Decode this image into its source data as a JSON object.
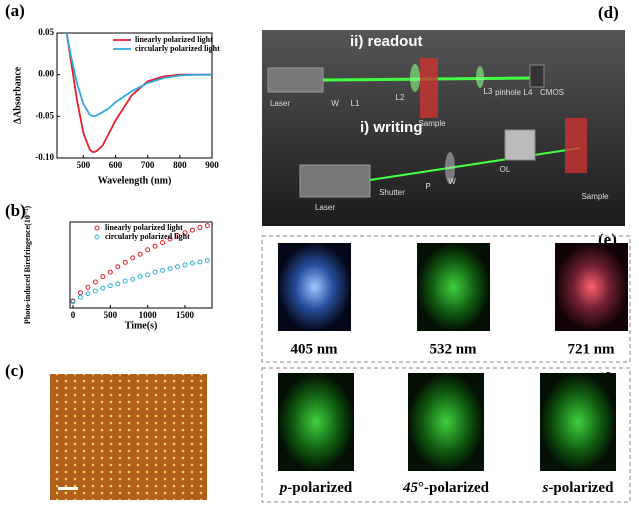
{
  "panel_labels": [
    "(a)",
    "(b)",
    "(c)",
    "(d)",
    "(e)",
    "(f)"
  ],
  "chart_data": [
    {
      "type": "line",
      "y_label": "ΔAbsorbance",
      "x_label": "Wavelength (nm)",
      "xlim": [
        418,
        900
      ],
      "ylim": [
        -0.1,
        0.05
      ],
      "xticks": [
        500,
        600,
        700,
        800,
        900
      ],
      "yticks": [
        {
          "value": -0.1,
          "label": "-0.10"
        },
        -0.05,
        {
          "value": 0,
          "label": "0.00"
        },
        0.05
      ],
      "x": [
        448,
        460,
        480,
        500,
        520,
        530,
        540,
        560,
        580,
        600,
        650,
        700,
        750,
        800,
        850,
        900
      ],
      "series": [
        {
          "name": "linearly polarized light",
          "color": "#e0202a",
          "values": [
            0.05,
            0.02,
            -0.03,
            -0.07,
            -0.09,
            -0.093,
            -0.092,
            -0.085,
            -0.07,
            -0.055,
            -0.025,
            -0.008,
            -0.002,
            0,
            0,
            0
          ]
        },
        {
          "name": "circularly polarized light",
          "color": "#30a8e0",
          "values": [
            0.05,
            0.025,
            -0.01,
            -0.035,
            -0.048,
            -0.05,
            -0.049,
            -0.045,
            -0.04,
            -0.033,
            -0.02,
            -0.01,
            -0.004,
            -0.001,
            0,
            0
          ]
        }
      ]
    },
    {
      "type": "scatter",
      "y_label": "Photo-induced Birefringence(10⁻³)",
      "x_label": "Time(s)",
      "xlim": [
        -40,
        1862
      ],
      "ylim": [
        -0.3,
        4.5
      ],
      "xticks": [
        0,
        500,
        1000,
        1500
      ],
      "x": [
        0,
        100,
        200,
        300,
        400,
        500,
        600,
        700,
        800,
        900,
        1000,
        1100,
        1200,
        1300,
        1400,
        1500,
        1600,
        1700,
        1800
      ],
      "series": [
        {
          "name": "linearly polarized light",
          "color": "#e0202a",
          "values": [
            0.1,
            0.55,
            0.85,
            1.15,
            1.45,
            1.7,
            2.0,
            2.25,
            2.5,
            2.7,
            2.95,
            3.15,
            3.35,
            3.55,
            3.75,
            3.9,
            4.05,
            4.2,
            4.3
          ]
        },
        {
          "name": "circularly polarized light",
          "color": "#30b0e0",
          "values": [
            0.05,
            0.3,
            0.5,
            0.65,
            0.8,
            0.95,
            1.05,
            1.2,
            1.3,
            1.45,
            1.55,
            1.7,
            1.8,
            1.9,
            2.0,
            2.1,
            2.2,
            2.27,
            2.35
          ]
        }
      ]
    }
  ],
  "setup": {
    "readout": "ii) readout",
    "writing": "i) writing",
    "readout_parts": [
      "Laser",
      "W",
      "L1",
      "L2",
      "L3",
      "pinhole",
      "L4",
      "CMOS",
      "Sample"
    ],
    "writing_parts": [
      "Laser",
      "Shutter",
      "P",
      "W",
      "OL",
      "Sample"
    ]
  },
  "wavelength_images": [
    "405 nm",
    "532 nm",
    "721 nm"
  ],
  "polarization_images": [
    {
      "italic": "p",
      "rest": "-polarized"
    },
    {
      "italic": "45",
      "rest": "°-polarized"
    },
    {
      "italic": "s",
      "rest": "-polarized"
    }
  ]
}
